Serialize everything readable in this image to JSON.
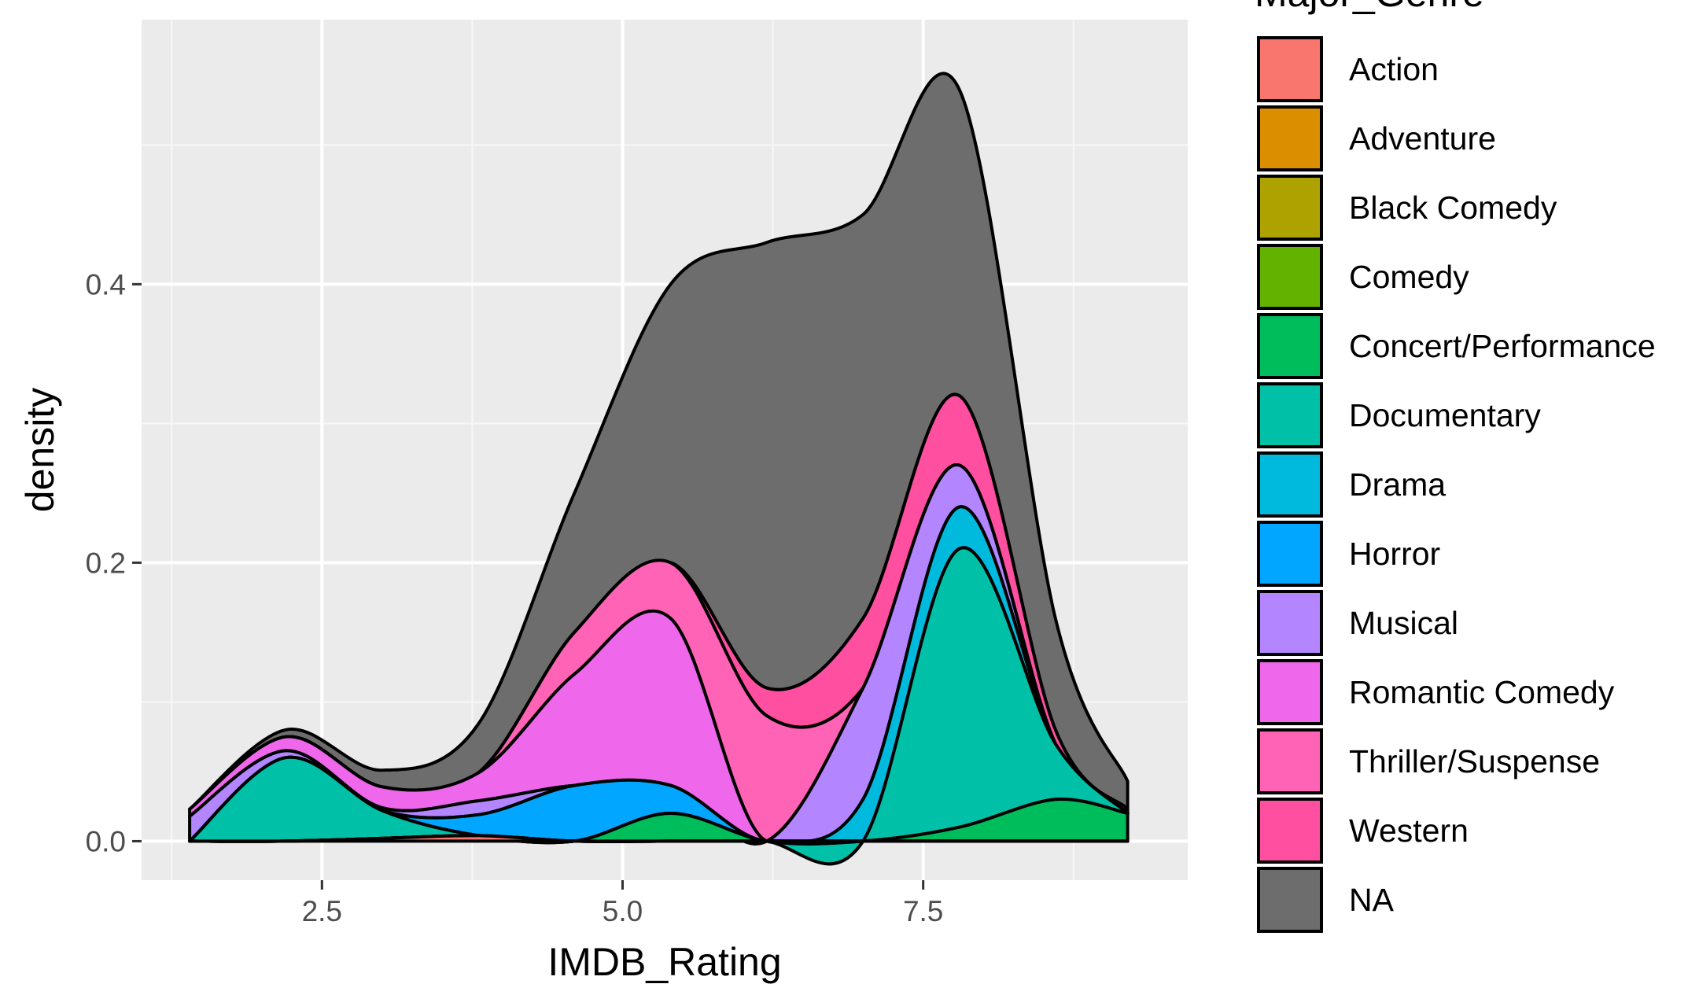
{
  "chart_data": {
    "type": "area",
    "xlabel": "IMDB_Rating",
    "ylabel": "density",
    "legend_title": "Major_Genre",
    "legend_position": "right",
    "grid": true,
    "xlim": [
      1.0,
      9.7
    ],
    "ylim": [
      -0.028,
      0.59
    ],
    "x_ticks": [
      2.5,
      5.0,
      7.5
    ],
    "x_tick_labels": [
      "2.5",
      "5.0",
      "7.5"
    ],
    "y_ticks": [
      0.0,
      0.2,
      0.4
    ],
    "y_tick_labels": [
      "0.0",
      "0.2",
      "0.4"
    ],
    "x": [
      1.4,
      2.2,
      3.0,
      3.8,
      4.6,
      5.4,
      6.2,
      7.0,
      7.8,
      8.6,
      9.2
    ],
    "series": [
      {
        "name": "Action",
        "color": "#F8766D",
        "values": [
          0.0,
          0.0,
          0.002,
          0.004,
          0.0,
          0.0,
          0.0,
          0.0,
          0.0,
          0.0,
          0.0
        ]
      },
      {
        "name": "Adventure",
        "color": "#DB8E00",
        "values": [
          0.0,
          0.0,
          0.0,
          0.0,
          0.0,
          0.0,
          0.0,
          0.0,
          0.0,
          0.0,
          0.0
        ]
      },
      {
        "name": "Black Comedy",
        "color": "#AEA200",
        "values": [
          0.0,
          0.0,
          0.0,
          0.0,
          0.0,
          0.0,
          0.0,
          0.0,
          0.0,
          0.0,
          0.0
        ]
      },
      {
        "name": "Comedy",
        "color": "#64B200",
        "values": [
          0.0,
          0.0,
          0.0,
          0.0,
          0.0,
          0.0,
          0.0,
          0.0,
          0.0,
          0.0,
          0.0
        ]
      },
      {
        "name": "Concert/Performance",
        "color": "#00BD5C",
        "values": [
          0.0,
          0.0,
          0.0,
          0.0,
          0.0,
          0.02,
          0.0,
          0.0,
          0.01,
          0.03,
          0.02
        ]
      },
      {
        "name": "Documentary",
        "color": "#00C1A7",
        "values": [
          0.0,
          0.06,
          0.02,
          0.0,
          0.0,
          0.0,
          0.0,
          0.0,
          0.2,
          0.04,
          0.0
        ]
      },
      {
        "name": "Drama",
        "color": "#00BADE",
        "values": [
          0.0,
          0.0,
          0.0,
          0.0,
          0.0,
          0.0,
          0.0,
          0.03,
          0.03,
          0.0,
          0.0
        ]
      },
      {
        "name": "Horror",
        "color": "#00A6FF",
        "values": [
          0.0,
          0.0,
          0.0,
          0.015,
          0.04,
          0.02,
          0.0,
          0.0,
          0.0,
          0.0,
          0.0
        ]
      },
      {
        "name": "Musical",
        "color": "#B385FF",
        "values": [
          0.018,
          0.005,
          0.002,
          0.01,
          0.0,
          0.0,
          0.0,
          0.08,
          0.03,
          0.0,
          0.0
        ]
      },
      {
        "name": "Romantic Comedy",
        "color": "#EF67EB",
        "values": [
          0.005,
          0.01,
          0.015,
          0.02,
          0.08,
          0.12,
          0.0,
          0.0,
          0.0,
          0.0,
          0.0
        ]
      },
      {
        "name": "Thriller/Suspense",
        "color": "#FF63B6",
        "values": [
          0.0,
          0.0,
          0.0,
          0.0,
          0.03,
          0.04,
          0.09,
          0.0,
          0.0,
          0.0,
          0.0
        ]
      },
      {
        "name": "Western",
        "color": "#FF4FA0",
        "values": [
          0.0,
          0.0,
          0.0,
          0.0,
          0.0,
          0.0,
          0.02,
          0.05,
          0.05,
          0.01,
          0.003
        ]
      },
      {
        "name": "NA",
        "color": "#6D6D6D",
        "values": [
          0.0,
          0.005,
          0.012,
          0.035,
          0.1,
          0.2,
          0.32,
          0.29,
          0.22,
          0.08,
          0.02
        ]
      }
    ]
  }
}
